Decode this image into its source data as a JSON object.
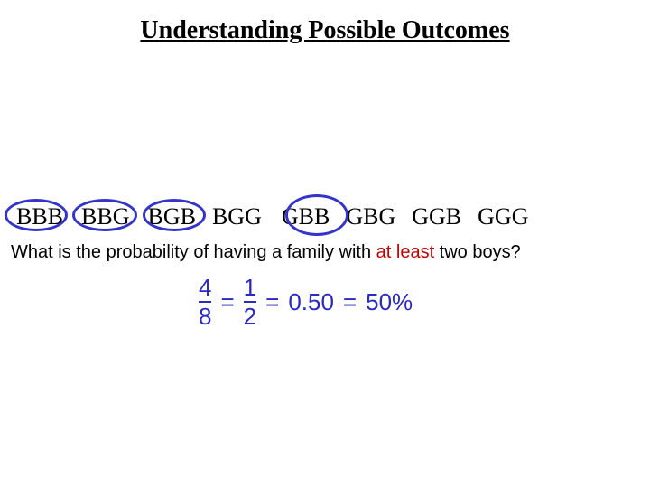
{
  "title": "Understanding Possible Outcomes",
  "outcomes": {
    "o1": "BBB",
    "o2": "BBG",
    "o3": "BGB",
    "o4": "BGG",
    "o5": "GBB",
    "o6": "GBG",
    "o7": "GGB",
    "o8": "GGG"
  },
  "question": {
    "prefix": "What is the probability of having a family with ",
    "highlight": "at least",
    "suffix": " two boys?"
  },
  "equation": {
    "frac1_num": "4",
    "frac1_den": "8",
    "eq1": "=",
    "frac2_num": "1",
    "frac2_den": "2",
    "eq2": "=",
    "decimal": "0.50",
    "eq3": "=",
    "percent": "50%"
  },
  "circles": {
    "stroke_color": "#3434c8",
    "stroke_width": 3,
    "circled_indices": [
      1,
      2,
      3,
      5
    ]
  },
  "colors": {
    "title_color": "#000000",
    "outcome_color": "#000000",
    "question_color": "#000000",
    "highlight_color": "#c00000",
    "equation_color": "#2a2ac0",
    "background": "#ffffff"
  },
  "fonts": {
    "title_family": "Times New Roman",
    "title_size": 28,
    "title_weight": "bold",
    "outcome_family": "Times New Roman",
    "outcome_size": 26,
    "question_family": "Arial",
    "question_size": 20,
    "equation_family": "Arial",
    "equation_size": 26
  }
}
